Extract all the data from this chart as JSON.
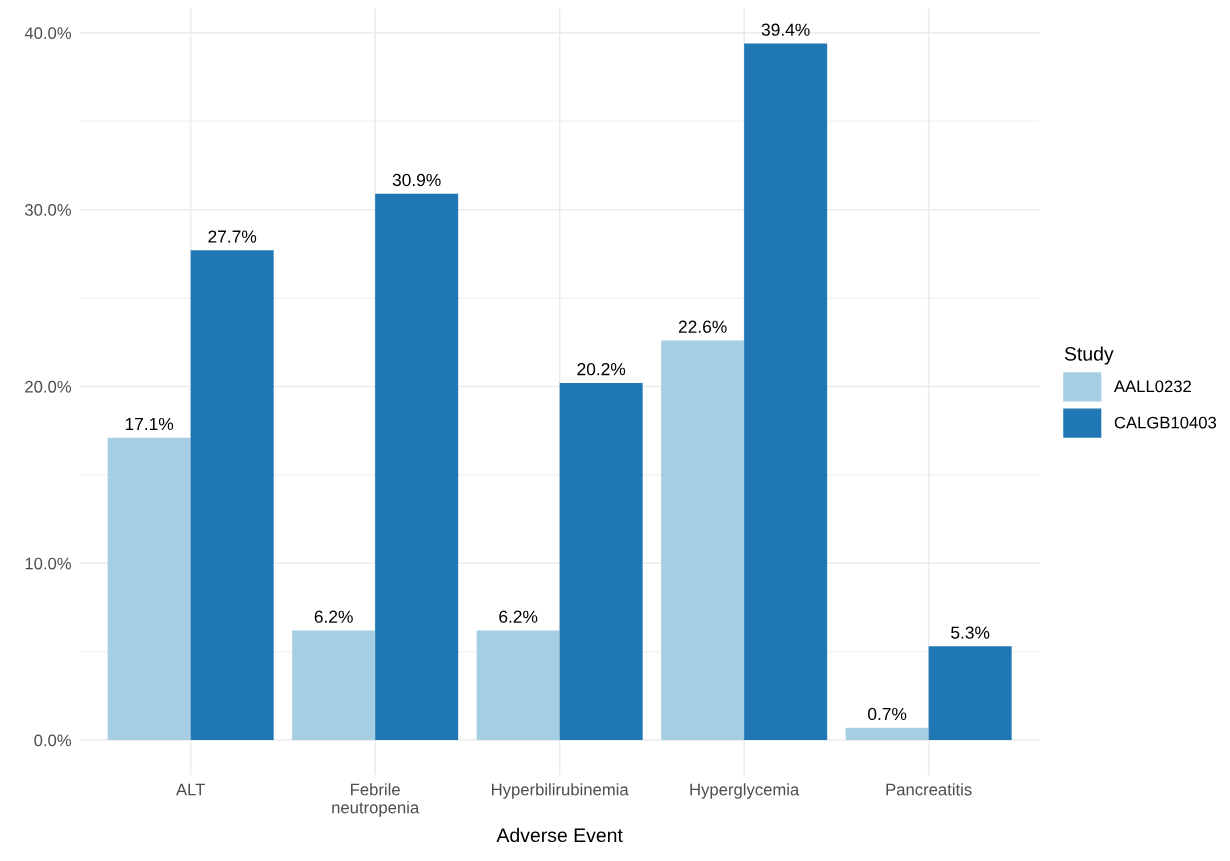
{
  "chart_data": {
    "type": "bar",
    "xlabel": "Adverse Event",
    "legend_title": "Study",
    "categories": [
      "ALT",
      "Febrile\nneutropenia",
      "Hyperbilirubinemia",
      "Hyperglycemia",
      "Pancreatitis"
    ],
    "series": [
      {
        "name": "AALL0232",
        "color": "#a6cee3",
        "values": [
          17.1,
          6.2,
          6.2,
          22.6,
          0.7
        ],
        "value_labels": [
          "17.1%",
          "6.2%",
          "6.2%",
          "22.6%",
          "0.7%"
        ]
      },
      {
        "name": "CALGB10403",
        "color": "#1f78b4",
        "values": [
          27.7,
          30.9,
          20.2,
          39.4,
          5.3
        ],
        "value_labels": [
          "27.7%",
          "30.9%",
          "20.2%",
          "39.4%",
          "5.3%"
        ]
      }
    ],
    "ylim": [
      -1.97,
      41.37
    ],
    "yticks": [
      {
        "value": 0,
        "label": "0.0%"
      },
      {
        "value": 10,
        "label": "10.0%"
      },
      {
        "value": 20,
        "label": "20.0%"
      },
      {
        "value": 30,
        "label": "30.0%"
      },
      {
        "value": 40,
        "label": "40.0%"
      }
    ],
    "grid": true,
    "legend": "right"
  }
}
